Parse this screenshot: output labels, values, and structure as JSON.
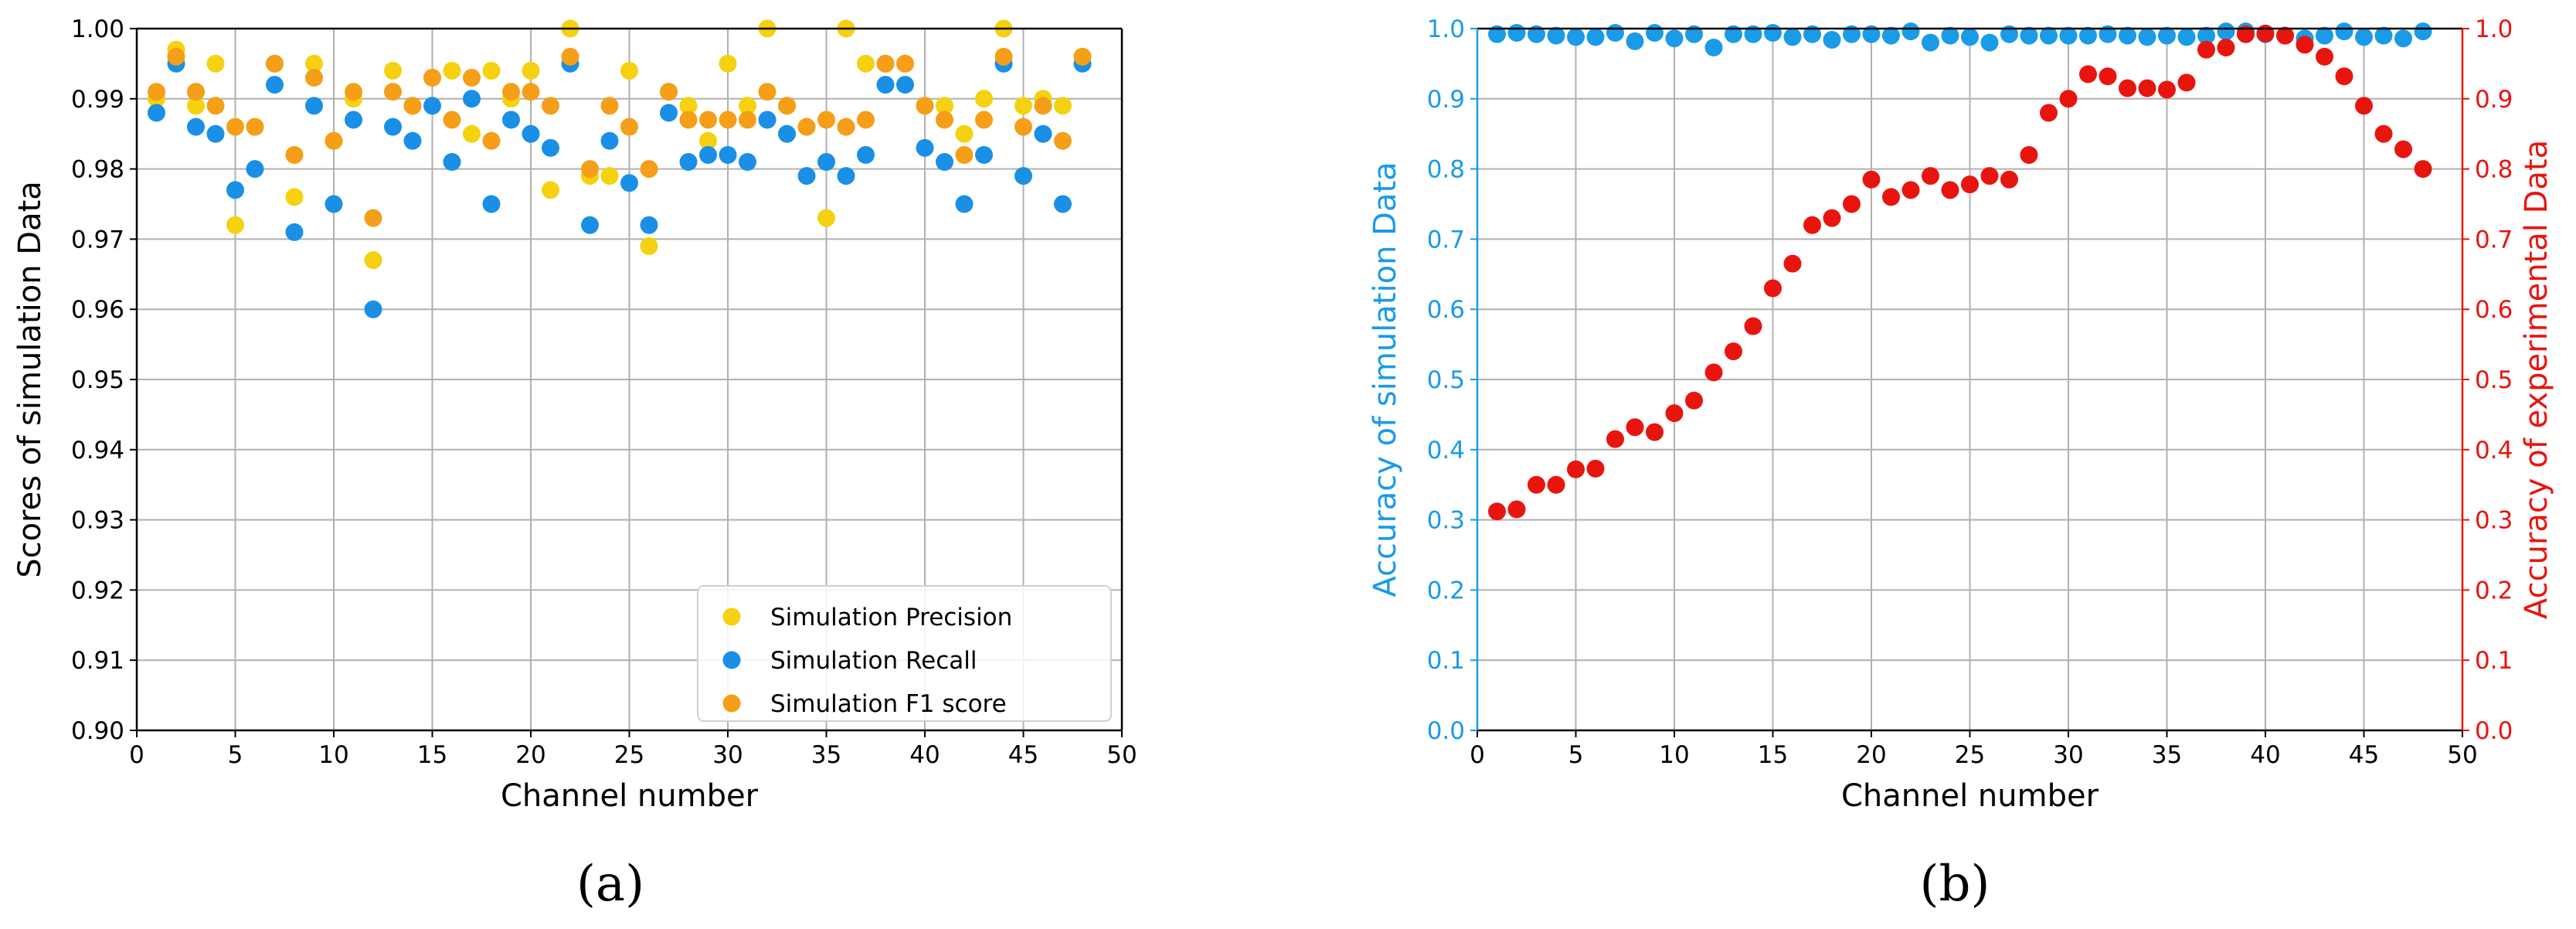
{
  "figure": {
    "panel_labels": [
      "(a)",
      "(b)"
    ]
  },
  "chart_data": [
    {
      "type": "scatter",
      "panel": "(a)",
      "xlabel": "Channel number",
      "ylabel": "Scores of simulation Data",
      "xlim": [
        0,
        50
      ],
      "ylim": [
        0.9,
        1.0
      ],
      "xticks": [
        0,
        5,
        10,
        15,
        20,
        25,
        30,
        35,
        40,
        45,
        50
      ],
      "yticks": [
        "0.90",
        "0.91",
        "0.92",
        "0.93",
        "0.94",
        "0.95",
        "0.96",
        "0.97",
        "0.98",
        "0.99",
        "1.00"
      ],
      "grid": true,
      "legend_position": "bottom-right",
      "x": [
        1,
        2,
        3,
        4,
        5,
        6,
        7,
        8,
        9,
        10,
        11,
        12,
        13,
        14,
        15,
        16,
        17,
        18,
        19,
        20,
        21,
        22,
        23,
        24,
        25,
        26,
        27,
        28,
        29,
        30,
        31,
        32,
        33,
        34,
        35,
        36,
        37,
        38,
        39,
        40,
        41,
        42,
        43,
        44,
        45,
        46,
        47,
        48
      ],
      "series": [
        {
          "name": "Simulation Precision",
          "color": "#f5d10f",
          "values": [
            0.99,
            0.997,
            0.989,
            0.995,
            0.972,
            0.986,
            0.995,
            0.976,
            0.995,
            0.984,
            0.99,
            0.967,
            0.994,
            0.989,
            0.993,
            0.994,
            0.985,
            0.994,
            0.99,
            0.994,
            0.977,
            1.0,
            0.979,
            0.979,
            0.994,
            0.969,
            0.991,
            0.989,
            0.984,
            0.995,
            0.989,
            1.0,
            0.989,
            0.986,
            0.973,
            1.0,
            0.995,
            0.995,
            0.995,
            0.989,
            0.989,
            0.985,
            0.99,
            1.0,
            0.989,
            0.99,
            0.989,
            0.996
          ]
        },
        {
          "name": "Simulation Recall",
          "color": "#1a8fe6",
          "values": [
            0.988,
            0.995,
            0.986,
            0.985,
            0.977,
            0.98,
            0.992,
            0.971,
            0.989,
            0.975,
            0.987,
            0.96,
            0.986,
            0.984,
            0.989,
            0.981,
            0.99,
            0.975,
            0.987,
            0.985,
            0.983,
            0.995,
            0.972,
            0.984,
            0.978,
            0.972,
            0.988,
            0.981,
            0.982,
            0.982,
            0.981,
            0.987,
            0.985,
            0.979,
            0.981,
            0.979,
            0.982,
            0.992,
            0.992,
            0.983,
            0.981,
            0.975,
            0.982,
            0.995,
            0.979,
            0.985,
            0.975,
            0.995
          ]
        },
        {
          "name": "Simulation F1 score",
          "color": "#f59e18",
          "values": [
            0.991,
            0.996,
            0.991,
            0.989,
            0.986,
            0.986,
            0.995,
            0.982,
            0.993,
            0.984,
            0.991,
            0.973,
            0.991,
            0.989,
            0.993,
            0.987,
            0.993,
            0.984,
            0.991,
            0.991,
            0.989,
            0.996,
            0.98,
            0.989,
            0.986,
            0.98,
            0.991,
            0.987,
            0.987,
            0.987,
            0.987,
            0.991,
            0.989,
            0.986,
            0.987,
            0.986,
            0.987,
            0.995,
            0.995,
            0.989,
            0.987,
            0.982,
            0.987,
            0.996,
            0.986,
            0.989,
            0.984,
            0.996
          ]
        }
      ]
    },
    {
      "type": "scatter",
      "panel": "(b)",
      "xlabel": "Channel number",
      "ylabel_left": "Accuracy of simulation Data",
      "ylabel_right": "Accuracy of experimental Data",
      "xlim": [
        0,
        50
      ],
      "ylim": [
        0.0,
        1.0
      ],
      "xticks": [
        0,
        5,
        10,
        15,
        20,
        25,
        30,
        35,
        40,
        45,
        50
      ],
      "yticks": [
        "0.0",
        "0.1",
        "0.2",
        "0.3",
        "0.4",
        "0.5",
        "0.6",
        "0.7",
        "0.8",
        "0.9",
        "1.0"
      ],
      "grid": true,
      "left_axis_color": "#1a9be8",
      "right_axis_color": "#e8150f",
      "x": [
        1,
        2,
        3,
        4,
        5,
        6,
        7,
        8,
        9,
        10,
        11,
        12,
        13,
        14,
        15,
        16,
        17,
        18,
        19,
        20,
        21,
        22,
        23,
        24,
        25,
        26,
        27,
        28,
        29,
        30,
        31,
        32,
        33,
        34,
        35,
        36,
        37,
        38,
        39,
        40,
        41,
        42,
        43,
        44,
        45,
        46,
        47,
        48
      ],
      "series": [
        {
          "axis": "left",
          "color": "#1a9be8",
          "values": [
            0.992,
            0.994,
            0.992,
            0.99,
            0.988,
            0.988,
            0.994,
            0.982,
            0.994,
            0.986,
            0.992,
            0.973,
            0.992,
            0.992,
            0.994,
            0.988,
            0.992,
            0.984,
            0.992,
            0.992,
            0.99,
            0.996,
            0.98,
            0.99,
            0.988,
            0.98,
            0.992,
            0.99,
            0.99,
            0.99,
            0.99,
            0.992,
            0.99,
            0.988,
            0.99,
            0.988,
            0.99,
            0.996,
            0.996,
            0.992,
            0.99,
            0.986,
            0.99,
            0.996,
            0.988,
            0.99,
            0.986,
            0.996
          ]
        },
        {
          "axis": "right",
          "color": "#e8150f",
          "values": [
            0.312,
            0.315,
            0.35,
            0.35,
            0.372,
            0.373,
            0.415,
            0.432,
            0.425,
            0.452,
            0.47,
            0.51,
            0.54,
            0.576,
            0.63,
            0.665,
            0.72,
            0.73,
            0.75,
            0.785,
            0.76,
            0.77,
            0.79,
            0.77,
            0.778,
            0.79,
            0.785,
            0.82,
            0.88,
            0.9,
            0.935,
            0.932,
            0.915,
            0.915,
            0.913,
            0.923,
            0.97,
            0.973,
            0.992,
            0.993,
            0.99,
            0.977,
            0.96,
            0.932,
            0.89,
            0.85,
            0.828,
            0.8
          ]
        }
      ]
    }
  ]
}
